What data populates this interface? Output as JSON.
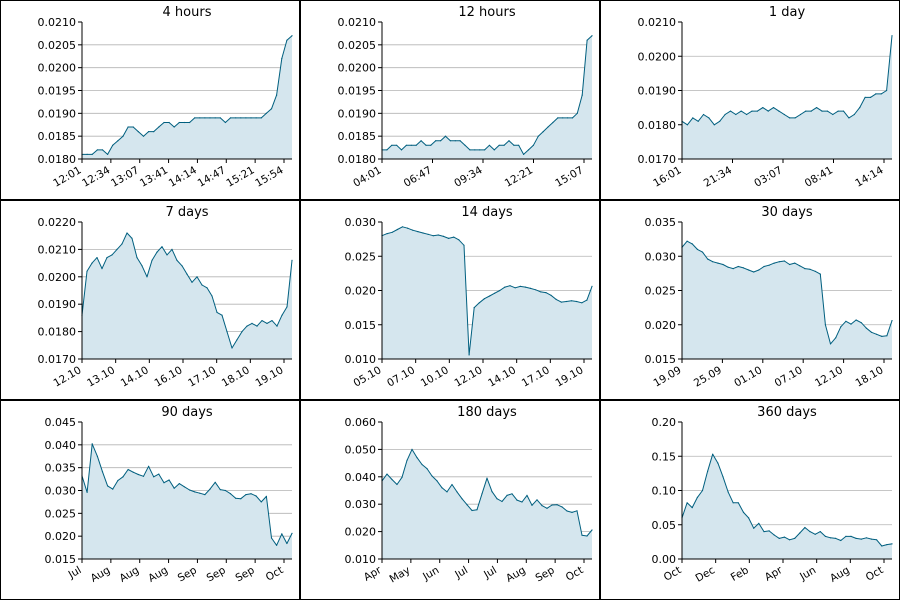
{
  "chart_data": [
    {
      "type": "area",
      "title": "4 hours",
      "ylim": [
        0.018,
        0.021
      ],
      "yticks": [
        "0.0180",
        "0.0185",
        "0.0190",
        "0.0195",
        "0.0200",
        "0.0205",
        "0.0210"
      ],
      "xticks": [
        "12:01",
        "12:34",
        "13:07",
        "13:41",
        "14:14",
        "14:47",
        "15:21",
        "15:54"
      ],
      "grid": true,
      "series": [
        {
          "values": [
            0.0181,
            0.0181,
            0.0181,
            0.0182,
            0.0182,
            0.0181,
            0.0183,
            0.0184,
            0.0185,
            0.0187,
            0.0187,
            0.0186,
            0.0185,
            0.0186,
            0.0186,
            0.0187,
            0.0188,
            0.0188,
            0.0187,
            0.0188,
            0.0188,
            0.0188,
            0.0189,
            0.0189,
            0.0189,
            0.0189,
            0.0189,
            0.0189,
            0.0188,
            0.0189,
            0.0189,
            0.0189,
            0.0189,
            0.0189,
            0.0189,
            0.0189,
            0.019,
            0.0191,
            0.0194,
            0.0202,
            0.0206,
            0.0207
          ]
        }
      ]
    },
    {
      "type": "area",
      "title": "12 hours",
      "ylim": [
        0.018,
        0.021
      ],
      "yticks": [
        "0.0180",
        "0.0185",
        "0.0190",
        "0.0195",
        "0.0200",
        "0.0205",
        "0.0210"
      ],
      "xticks": [
        "04:01",
        "06:47",
        "09:34",
        "12:21",
        "15:07"
      ],
      "grid": true,
      "series": [
        {
          "values": [
            0.0182,
            0.0182,
            0.0183,
            0.0183,
            0.0182,
            0.0183,
            0.0183,
            0.0183,
            0.0184,
            0.0183,
            0.0183,
            0.0184,
            0.0184,
            0.0185,
            0.0184,
            0.0184,
            0.0184,
            0.0183,
            0.0182,
            0.0182,
            0.0182,
            0.0182,
            0.0183,
            0.0182,
            0.0183,
            0.0183,
            0.0184,
            0.0183,
            0.0183,
            0.0181,
            0.0182,
            0.0183,
            0.0185,
            0.0186,
            0.0187,
            0.0188,
            0.0189,
            0.0189,
            0.0189,
            0.0189,
            0.019,
            0.0194,
            0.0206,
            0.0207
          ]
        }
      ]
    },
    {
      "type": "area",
      "title": "1 day",
      "ylim": [
        0.017,
        0.021
      ],
      "yticks": [
        "0.0170",
        "0.0180",
        "0.0190",
        "0.0200",
        "0.0210"
      ],
      "xticks": [
        "16:01",
        "21:34",
        "03:07",
        "08:41",
        "14:14"
      ],
      "grid": true,
      "series": [
        {
          "values": [
            0.0181,
            0.018,
            0.0182,
            0.0181,
            0.0183,
            0.0182,
            0.018,
            0.0181,
            0.0183,
            0.0184,
            0.0183,
            0.0184,
            0.0183,
            0.0184,
            0.0184,
            0.0185,
            0.0184,
            0.0185,
            0.0184,
            0.0183,
            0.0182,
            0.0182,
            0.0183,
            0.0184,
            0.0184,
            0.0185,
            0.0184,
            0.0184,
            0.0183,
            0.0184,
            0.0184,
            0.0182,
            0.0183,
            0.0185,
            0.0188,
            0.0188,
            0.0189,
            0.0189,
            0.019,
            0.0206
          ]
        }
      ]
    },
    {
      "type": "area",
      "title": "7 days",
      "ylim": [
        0.017,
        0.022
      ],
      "yticks": [
        "0.0170",
        "0.0180",
        "0.0190",
        "0.0200",
        "0.0210",
        "0.0220"
      ],
      "xticks": [
        "12.10",
        "13.10",
        "14.10",
        "16.10",
        "17.10",
        "18.10",
        "19.10"
      ],
      "grid": true,
      "series": [
        {
          "values": [
            0.0186,
            0.0202,
            0.0205,
            0.0207,
            0.0203,
            0.0207,
            0.0208,
            0.021,
            0.0212,
            0.0216,
            0.0214,
            0.0207,
            0.0204,
            0.02,
            0.0206,
            0.0209,
            0.0211,
            0.0208,
            0.021,
            0.0206,
            0.0204,
            0.0201,
            0.0198,
            0.02,
            0.0197,
            0.0196,
            0.0193,
            0.0187,
            0.0186,
            0.018,
            0.0174,
            0.0177,
            0.018,
            0.0182,
            0.0183,
            0.0182,
            0.0184,
            0.0183,
            0.0184,
            0.0182,
            0.0186,
            0.0189,
            0.0206
          ]
        }
      ]
    },
    {
      "type": "area",
      "title": "14 days",
      "ylim": [
        0.01,
        0.03
      ],
      "yticks": [
        "0.010",
        "0.015",
        "0.020",
        "0.025",
        "0.030"
      ],
      "xticks": [
        "05.10",
        "07.10",
        "10.10",
        "12.10",
        "14.10",
        "17.10",
        "19.10"
      ],
      "grid": true,
      "series": [
        {
          "values": [
            0.028,
            0.0283,
            0.0285,
            0.0289,
            0.0293,
            0.0291,
            0.0288,
            0.0286,
            0.0284,
            0.0282,
            0.028,
            0.0281,
            0.0279,
            0.0276,
            0.0278,
            0.0274,
            0.0266,
            0.0106,
            0.0175,
            0.0182,
            0.0188,
            0.0192,
            0.0196,
            0.02,
            0.0205,
            0.0207,
            0.0204,
            0.0206,
            0.0205,
            0.0203,
            0.0201,
            0.0198,
            0.0197,
            0.0193,
            0.0187,
            0.0183,
            0.0184,
            0.0185,
            0.0184,
            0.0182,
            0.0186,
            0.0206
          ]
        }
      ]
    },
    {
      "type": "area",
      "title": "30 days",
      "ylim": [
        0.015,
        0.035
      ],
      "yticks": [
        "0.015",
        "0.020",
        "0.025",
        "0.030",
        "0.035"
      ],
      "xticks": [
        "19.09",
        "25.09",
        "01.10",
        "07.10",
        "12.10",
        "18.10"
      ],
      "grid": true,
      "series": [
        {
          "values": [
            0.0313,
            0.0322,
            0.0318,
            0.031,
            0.0306,
            0.0296,
            0.0292,
            0.029,
            0.0288,
            0.0284,
            0.0282,
            0.0285,
            0.0283,
            0.028,
            0.0277,
            0.028,
            0.0285,
            0.0287,
            0.029,
            0.0292,
            0.0293,
            0.0288,
            0.029,
            0.0286,
            0.0282,
            0.0281,
            0.0278,
            0.0274,
            0.02,
            0.0172,
            0.0181,
            0.0197,
            0.0205,
            0.0201,
            0.0207,
            0.0203,
            0.0195,
            0.0189,
            0.0186,
            0.0183,
            0.0184,
            0.0206
          ]
        }
      ]
    },
    {
      "type": "area",
      "title": "90 days",
      "ylim": [
        0.015,
        0.045
      ],
      "yticks": [
        "0.015",
        "0.020",
        "0.025",
        "0.030",
        "0.035",
        "0.040",
        "0.045"
      ],
      "xticks": [
        "Jul",
        "Aug",
        "Aug",
        "Aug",
        "Sep",
        "Sep",
        "Sep",
        "Oct"
      ],
      "grid": true,
      "series": [
        {
          "values": [
            0.0332,
            0.0296,
            0.0402,
            0.0375,
            0.0341,
            0.031,
            0.0303,
            0.0322,
            0.033,
            0.0346,
            0.034,
            0.0335,
            0.0331,
            0.0353,
            0.033,
            0.0336,
            0.0317,
            0.0323,
            0.0305,
            0.0315,
            0.0308,
            0.0301,
            0.0297,
            0.0294,
            0.0291,
            0.0303,
            0.0318,
            0.0302,
            0.03,
            0.0293,
            0.0283,
            0.0282,
            0.0291,
            0.0293,
            0.0288,
            0.0275,
            0.0287,
            0.0196,
            0.018,
            0.0205,
            0.0184,
            0.0206
          ]
        }
      ]
    },
    {
      "type": "area",
      "title": "180 days",
      "ylim": [
        0.01,
        0.06
      ],
      "yticks": [
        "0.010",
        "0.020",
        "0.030",
        "0.040",
        "0.050",
        "0.060"
      ],
      "xticks": [
        "Apr",
        "May",
        "Jun",
        "Jul",
        "Jul",
        "Aug",
        "Sep",
        "Oct"
      ],
      "grid": true,
      "series": [
        {
          "values": [
            0.0385,
            0.041,
            0.039,
            0.0372,
            0.0398,
            0.046,
            0.05,
            0.047,
            0.0445,
            0.043,
            0.0403,
            0.0385,
            0.036,
            0.0345,
            0.0372,
            0.0345,
            0.032,
            0.0298,
            0.0277,
            0.028,
            0.0338,
            0.0395,
            0.0346,
            0.032,
            0.031,
            0.0332,
            0.0338,
            0.0315,
            0.0308,
            0.0332,
            0.0296,
            0.0316,
            0.0295,
            0.0285,
            0.0297,
            0.0298,
            0.029,
            0.0275,
            0.027,
            0.0276,
            0.0187,
            0.0184,
            0.0206
          ]
        }
      ]
    },
    {
      "type": "area",
      "title": "360 days",
      "ylim": [
        0.0,
        0.2
      ],
      "yticks": [
        "0.00",
        "0.05",
        "0.10",
        "0.15",
        "0.20"
      ],
      "xticks": [
        "Oct",
        "Dec",
        "Feb",
        "Apr",
        "Jun",
        "Aug",
        "Oct"
      ],
      "grid": true,
      "series": [
        {
          "values": [
            0.06,
            0.082,
            0.075,
            0.09,
            0.1,
            0.128,
            0.153,
            0.14,
            0.12,
            0.098,
            0.082,
            0.082,
            0.068,
            0.06,
            0.045,
            0.052,
            0.04,
            0.041,
            0.035,
            0.03,
            0.032,
            0.028,
            0.03,
            0.038,
            0.046,
            0.04,
            0.036,
            0.04,
            0.033,
            0.031,
            0.03,
            0.027,
            0.033,
            0.033,
            0.03,
            0.029,
            0.031,
            0.029,
            0.028,
            0.019,
            0.021,
            0.022
          ]
        }
      ]
    }
  ],
  "colors": {
    "line": "#005f7f",
    "fill": "#d5e6ee",
    "grid": "#b3b3b3"
  }
}
